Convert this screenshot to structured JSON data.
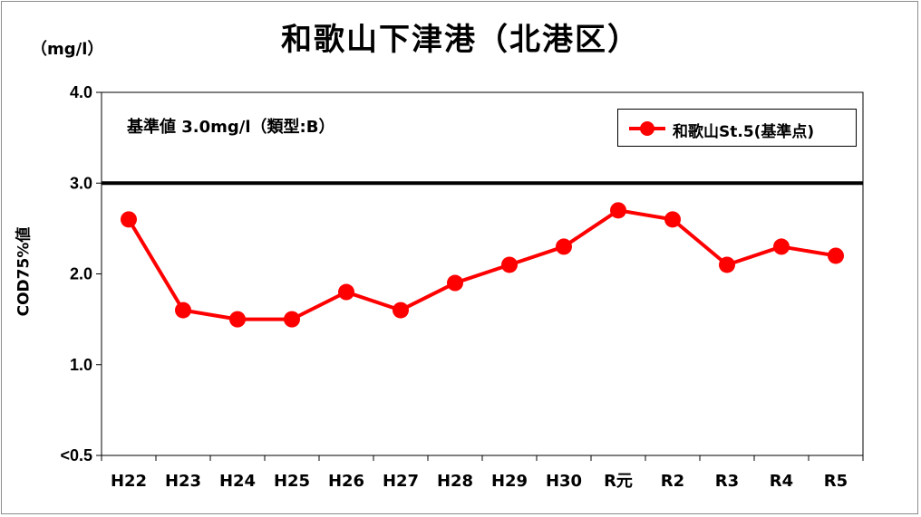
{
  "chart_data": {
    "type": "line",
    "title": "和歌山下津港（北港区）",
    "unit": "（mg/l）",
    "ylabel": "COD75%値",
    "annotation": "基準値  3.0mg/l（類型:B）",
    "standard_value": 3.0,
    "categories": [
      "H22",
      "H23",
      "H24",
      "H25",
      "H26",
      "H27",
      "H28",
      "H29",
      "H30",
      "R元",
      "R2",
      "R3",
      "R4",
      "R5"
    ],
    "series": [
      {
        "name": "和歌山St.5(基準点)",
        "values": [
          2.6,
          1.6,
          1.5,
          1.5,
          1.8,
          1.6,
          1.9,
          2.1,
          2.3,
          2.7,
          2.6,
          2.1,
          2.3,
          2.2
        ]
      }
    ],
    "ylim": [
      0.0,
      4.0
    ],
    "yticks": [
      0.0,
      1.0,
      2.0,
      3.0,
      4.0
    ],
    "ytick_labels": [
      "<0.5",
      "1.0",
      "2.0",
      "3.0",
      "4.0"
    ],
    "legend_position": "top-right",
    "grid": false,
    "colors": {
      "series": "#ff0000",
      "standard_line": "#000000"
    }
  }
}
